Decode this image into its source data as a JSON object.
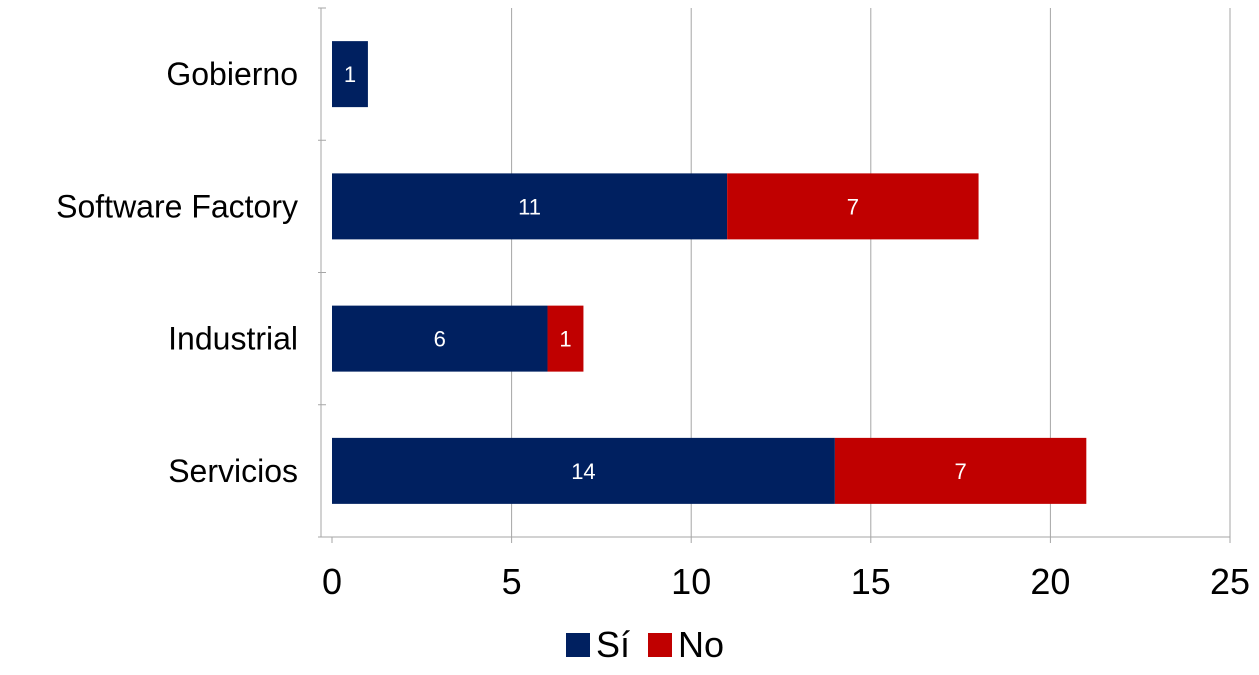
{
  "chart_data": {
    "type": "bar",
    "orientation": "horizontal",
    "stacked": true,
    "categories": [
      "Gobierno",
      "Software Factory",
      "Industrial",
      "Servicios"
    ],
    "series": [
      {
        "name": "Sí",
        "values": [
          1,
          11,
          6,
          14
        ],
        "color": "#002060"
      },
      {
        "name": "No",
        "values": [
          0,
          7,
          1,
          7
        ],
        "color": "#c00000"
      }
    ],
    "xlim": [
      0,
      25
    ],
    "xticks": [
      0,
      5,
      10,
      15,
      20,
      25
    ],
    "grid": "vertical",
    "legend": "bottom",
    "data_labels": true
  }
}
